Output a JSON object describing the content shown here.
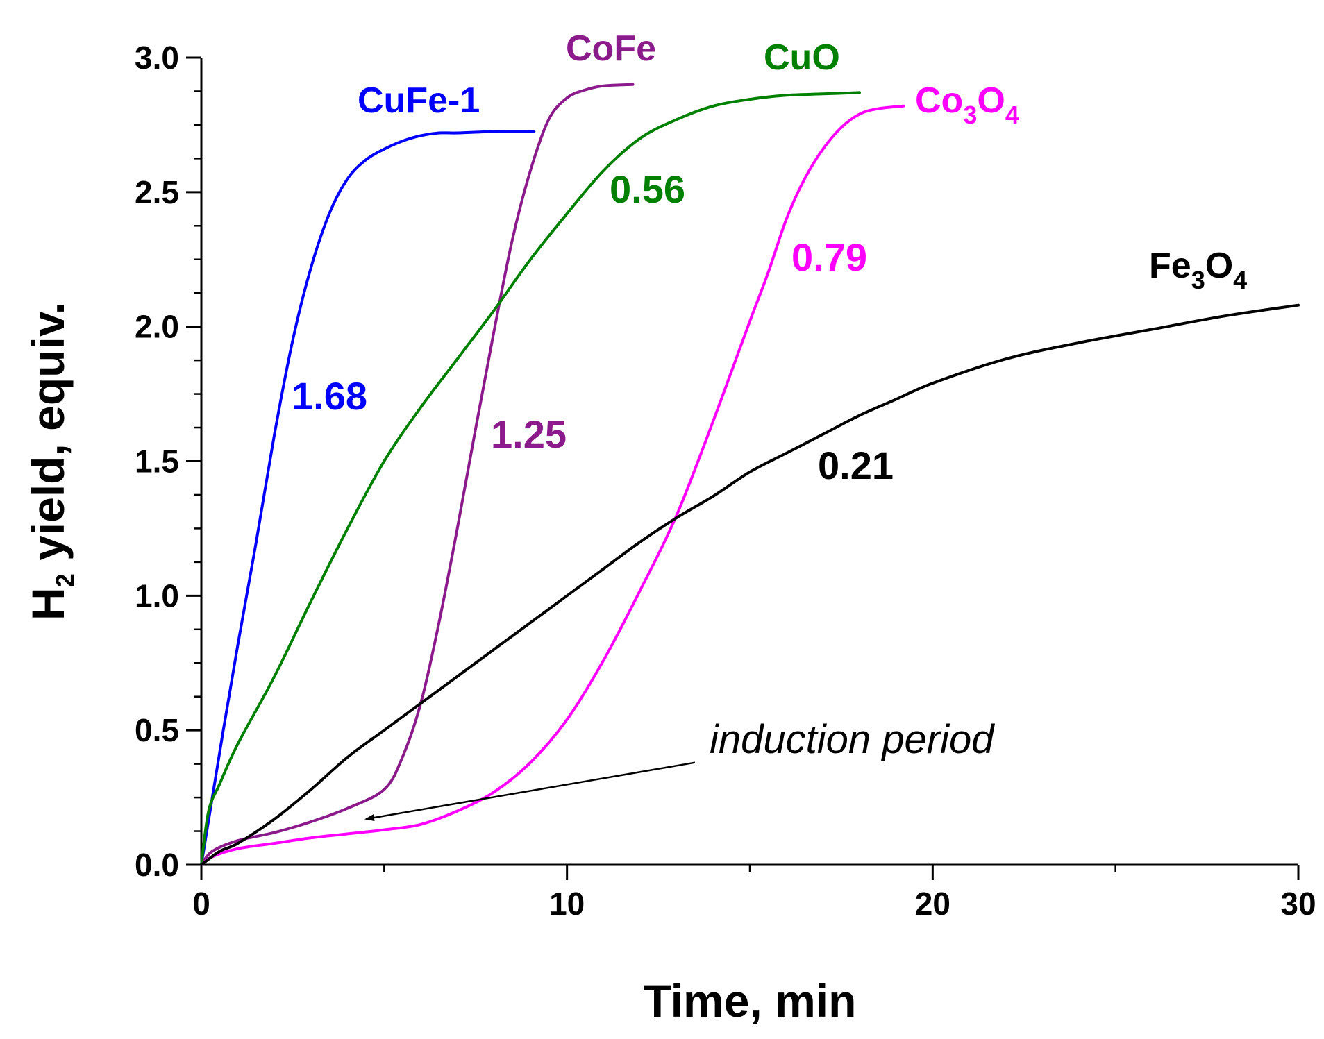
{
  "chart_data": {
    "type": "line",
    "xlabel": "Time, min",
    "ylabel_main": "H",
    "ylabel_sub": "2",
    "ylabel_rest": " yield, equiv.",
    "xlim": [
      0,
      30
    ],
    "ylim": [
      0,
      3.0
    ],
    "x_ticks": [
      0,
      10,
      20,
      30
    ],
    "x_tick_labels": [
      "0",
      "10",
      "20",
      "30"
    ],
    "y_ticks": [
      0,
      0.5,
      1.0,
      1.5,
      2.0,
      2.5,
      3.0
    ],
    "y_tick_labels": [
      "0.0",
      "0.5",
      "1.0",
      "1.5",
      "2.0",
      "2.5",
      "3.0"
    ],
    "grid": false,
    "series": [
      {
        "name": "CuFe-1",
        "name_parts": [
          {
            "t": "CuFe-1"
          }
        ],
        "color": "#0000ff",
        "rate": "1.68",
        "x": [
          0,
          0.3,
          0.6,
          1,
          1.5,
          2,
          2.5,
          3,
          3.5,
          4,
          4.5,
          5,
          5.5,
          6,
          6.5,
          7,
          8,
          9.1
        ],
        "y": [
          0,
          0.25,
          0.5,
          0.82,
          1.2,
          1.6,
          1.95,
          2.22,
          2.42,
          2.55,
          2.62,
          2.66,
          2.69,
          2.71,
          2.72,
          2.72,
          2.725,
          2.725
        ]
      },
      {
        "name": "CoFe",
        "name_parts": [
          {
            "t": "CoFe"
          }
        ],
        "color": "#8b1a8b",
        "rate": "1.25",
        "x": [
          0,
          0.3,
          1,
          2,
          3,
          4,
          5,
          5.5,
          6,
          6.5,
          7,
          7.5,
          8,
          8.5,
          9,
          9.5,
          10,
          10.5,
          11,
          11.8
        ],
        "y": [
          0,
          0.05,
          0.09,
          0.12,
          0.16,
          0.21,
          0.28,
          0.4,
          0.6,
          0.9,
          1.25,
          1.62,
          1.98,
          2.32,
          2.58,
          2.77,
          2.85,
          2.88,
          2.895,
          2.9
        ]
      },
      {
        "name": "CuO",
        "name_parts": [
          {
            "t": "CuO"
          }
        ],
        "color": "#008000",
        "rate": "0.56",
        "x": [
          0,
          0.2,
          0.5,
          1,
          2,
          3,
          4,
          5,
          6,
          7,
          8,
          9,
          10,
          11,
          12,
          13,
          14,
          15,
          16,
          17,
          18
        ],
        "y": [
          0,
          0.2,
          0.3,
          0.45,
          0.7,
          0.98,
          1.25,
          1.5,
          1.7,
          1.88,
          2.06,
          2.25,
          2.42,
          2.58,
          2.7,
          2.77,
          2.82,
          2.845,
          2.86,
          2.865,
          2.87
        ]
      },
      {
        "name": "Co3O4",
        "name_parts": [
          {
            "t": "Co"
          },
          {
            "t": "3",
            "sub": true
          },
          {
            "t": "O"
          },
          {
            "t": "4",
            "sub": true
          }
        ],
        "color": "#ff00ff",
        "rate": "0.79",
        "x": [
          0,
          0.3,
          1,
          2,
          3,
          4,
          5,
          6,
          7,
          8,
          9,
          10,
          11,
          12,
          13,
          14,
          15,
          15.5,
          16,
          16.5,
          17,
          17.5,
          18,
          18.5,
          19.2
        ],
        "y": [
          0,
          0.03,
          0.06,
          0.08,
          0.1,
          0.115,
          0.13,
          0.15,
          0.2,
          0.27,
          0.38,
          0.54,
          0.76,
          1.02,
          1.3,
          1.65,
          2.02,
          2.2,
          2.4,
          2.55,
          2.66,
          2.74,
          2.79,
          2.81,
          2.82
        ]
      },
      {
        "name": "Fe3O4",
        "name_parts": [
          {
            "t": "Fe"
          },
          {
            "t": "3",
            "sub": true
          },
          {
            "t": "O"
          },
          {
            "t": "4",
            "sub": true
          }
        ],
        "color": "#000000",
        "rate": "0.21",
        "x": [
          0,
          0.5,
          1,
          2,
          3,
          4,
          5,
          6,
          7,
          8,
          9,
          10,
          11,
          12,
          13,
          14,
          15,
          16,
          17,
          18,
          19,
          20,
          22,
          24,
          26,
          28,
          30
        ],
        "y": [
          0,
          0.05,
          0.08,
          0.17,
          0.28,
          0.4,
          0.5,
          0.6,
          0.7,
          0.8,
          0.9,
          1.0,
          1.1,
          1.2,
          1.29,
          1.37,
          1.46,
          1.53,
          1.6,
          1.67,
          1.73,
          1.79,
          1.88,
          1.94,
          1.99,
          2.04,
          2.08
        ]
      }
    ],
    "annotation": {
      "text": "induction period",
      "arrow_from": [
        13.5,
        0.38
      ],
      "arrow_to": [
        4.5,
        0.17
      ]
    }
  }
}
